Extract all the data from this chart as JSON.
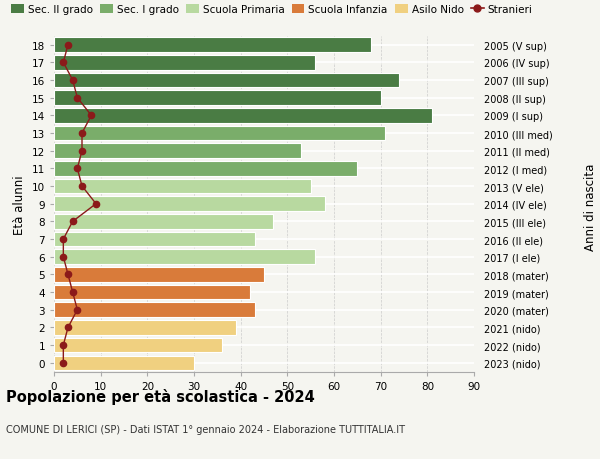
{
  "ages": [
    0,
    1,
    2,
    3,
    4,
    5,
    6,
    7,
    8,
    9,
    10,
    11,
    12,
    13,
    14,
    15,
    16,
    17,
    18
  ],
  "years": [
    "2023 (nido)",
    "2022 (nido)",
    "2021 (nido)",
    "2020 (mater)",
    "2019 (mater)",
    "2018 (mater)",
    "2017 (I ele)",
    "2016 (II ele)",
    "2015 (III ele)",
    "2014 (IV ele)",
    "2013 (V ele)",
    "2012 (I med)",
    "2011 (II med)",
    "2010 (III med)",
    "2009 (I sup)",
    "2008 (II sup)",
    "2007 (III sup)",
    "2006 (IV sup)",
    "2005 (V sup)"
  ],
  "values": [
    30,
    36,
    39,
    43,
    42,
    45,
    56,
    43,
    47,
    58,
    55,
    65,
    53,
    71,
    81,
    70,
    74,
    56,
    68
  ],
  "stranieri": [
    2,
    2,
    3,
    5,
    4,
    3,
    2,
    2,
    4,
    9,
    6,
    5,
    6,
    6,
    8,
    5,
    4,
    2,
    3
  ],
  "colors": {
    "Sec. II grado": "#4a7c44",
    "Sec. I grado": "#7aad6a",
    "Scuola Primaria": "#b8d9a0",
    "Scuola Infanzia": "#d97b3a",
    "Asilo Nido": "#f0d080",
    "Stranieri": "#8b1a1a"
  },
  "bar_colors_by_age": [
    "#f0d080",
    "#f0d080",
    "#f0d080",
    "#d97b3a",
    "#d97b3a",
    "#d97b3a",
    "#b8d9a0",
    "#b8d9a0",
    "#b8d9a0",
    "#b8d9a0",
    "#b8d9a0",
    "#7aad6a",
    "#7aad6a",
    "#7aad6a",
    "#4a7c44",
    "#4a7c44",
    "#4a7c44",
    "#4a7c44",
    "#4a7c44"
  ],
  "legend_labels": [
    "Sec. II grado",
    "Sec. I grado",
    "Scuola Primaria",
    "Scuola Infanzia",
    "Asilo Nido",
    "Stranieri"
  ],
  "legend_colors": [
    "#4a7c44",
    "#7aad6a",
    "#b8d9a0",
    "#d97b3a",
    "#f0d080",
    "#8b1a1a"
  ],
  "title": "Popolazione per età scolastica - 2024",
  "subtitle": "COMUNE DI LERICI (SP) - Dati ISTAT 1° gennaio 2024 - Elaborazione TUTTITALIA.IT",
  "ylabel": "Età alunni",
  "right_label": "Anni di nascita",
  "xlim": [
    0,
    90
  ],
  "background_color": "#f5f5f0"
}
